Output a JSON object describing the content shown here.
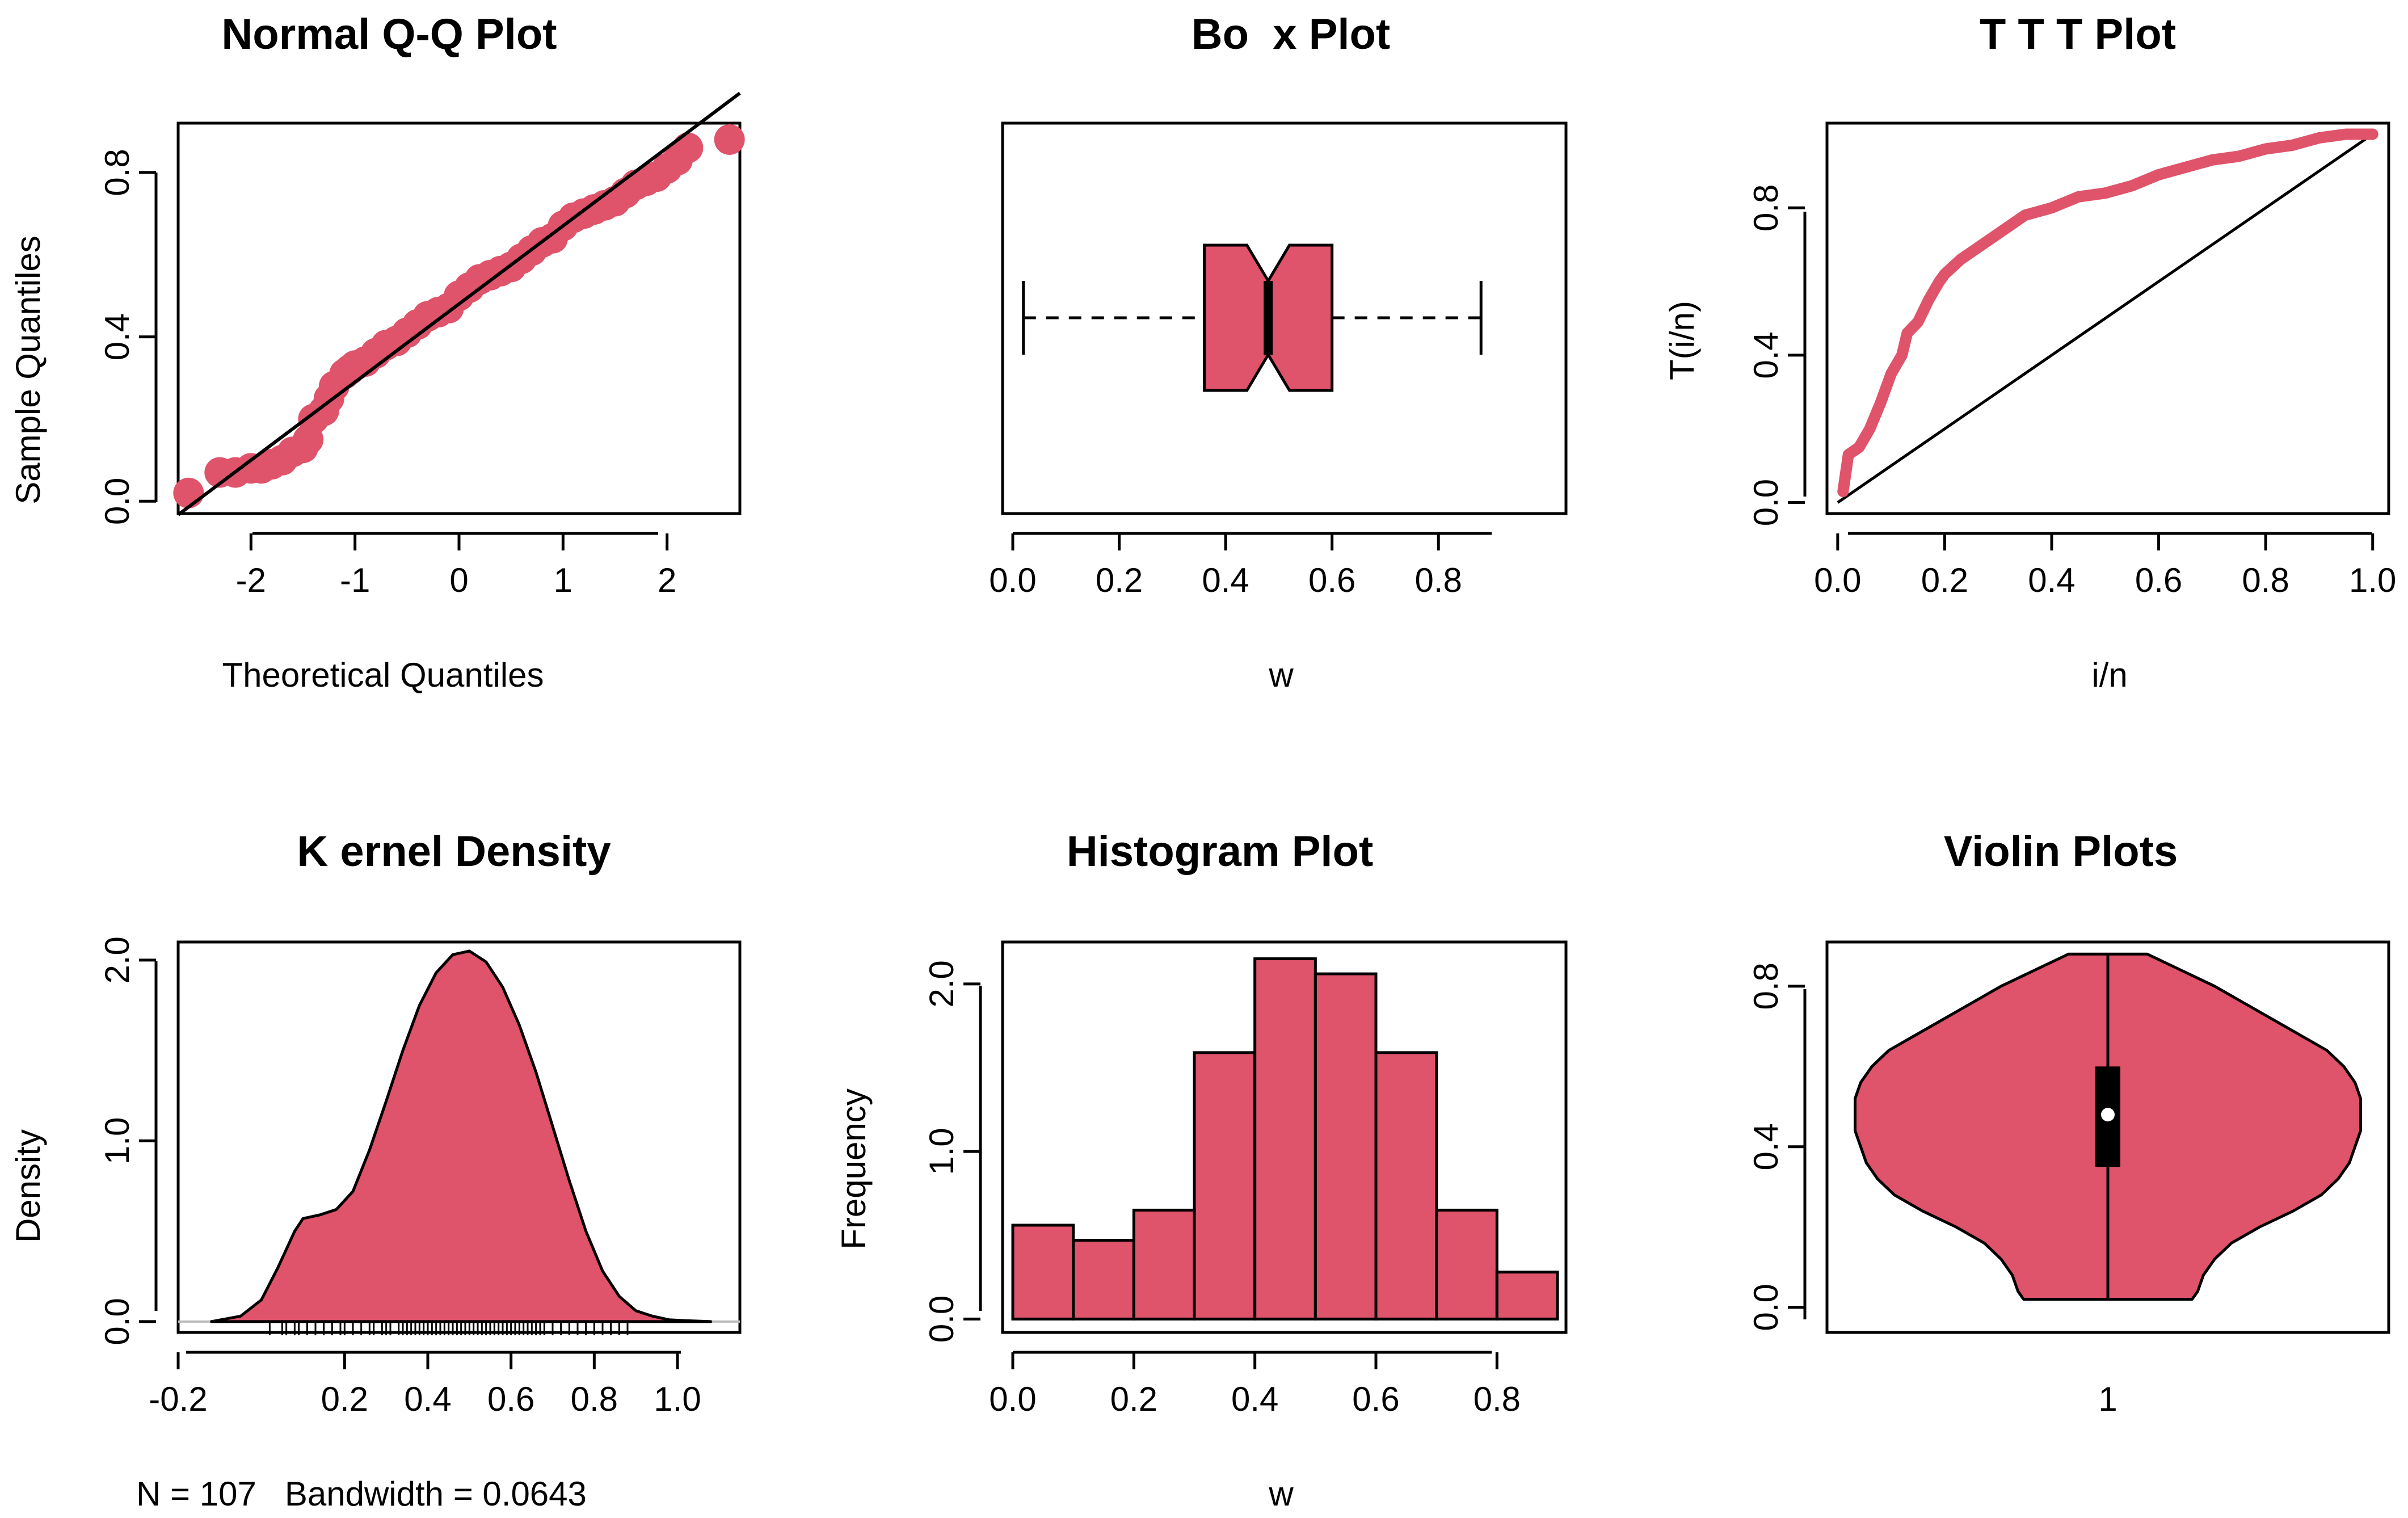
{
  "figure": {
    "accent_color": "#df536b",
    "line_color": "#000000"
  },
  "chart_data": [
    {
      "id": "qq",
      "type": "scatter",
      "title": "Normal Q-Q Plot",
      "xlabel": "Theoretical Quantiles",
      "ylabel": "Sample Quantiles",
      "xlim": [
        -2.7,
        2.7
      ],
      "ylim": [
        -0.03,
        0.92
      ],
      "xticks": [
        -2,
        -1,
        0,
        1,
        2
      ],
      "xtick_labels": [
        "-2",
        "-1",
        "0",
        "1",
        "2"
      ],
      "yticks": [
        0.0,
        0.4,
        0.8
      ],
      "ytick_labels": [
        "0.0",
        "0.4",
        "0.8"
      ],
      "reference_line": {
        "intercept": 0.48,
        "slope": 0.19
      },
      "x": [
        -2.6,
        -2.3,
        -2.15,
        -2.0,
        -1.9,
        -1.8,
        -1.7,
        -1.6,
        -1.5,
        -1.45,
        -1.4,
        -1.3,
        -1.25,
        -1.2,
        -1.1,
        -1.05,
        -1.0,
        -0.9,
        -0.8,
        -0.7,
        -0.6,
        -0.5,
        -0.4,
        -0.3,
        -0.2,
        -0.1,
        0.0,
        0.1,
        0.2,
        0.3,
        0.4,
        0.5,
        0.6,
        0.7,
        0.8,
        0.9,
        1.0,
        1.1,
        1.2,
        1.3,
        1.4,
        1.5,
        1.6,
        1.7,
        1.8,
        1.9,
        2.0,
        2.1,
        2.2,
        2.6
      ],
      "y": [
        0.02,
        0.07,
        0.07,
        0.08,
        0.08,
        0.09,
        0.1,
        0.12,
        0.13,
        0.15,
        0.2,
        0.22,
        0.25,
        0.28,
        0.31,
        0.32,
        0.33,
        0.34,
        0.36,
        0.38,
        0.39,
        0.41,
        0.43,
        0.45,
        0.46,
        0.47,
        0.5,
        0.52,
        0.54,
        0.55,
        0.56,
        0.57,
        0.59,
        0.61,
        0.63,
        0.64,
        0.67,
        0.69,
        0.7,
        0.71,
        0.72,
        0.73,
        0.75,
        0.77,
        0.78,
        0.79,
        0.81,
        0.83,
        0.86,
        0.88
      ]
    },
    {
      "id": "box",
      "type": "box",
      "title": "Bo  x Plot",
      "xlabel": "w",
      "xlim": [
        0.0,
        0.9
      ],
      "xticks": [
        0.0,
        0.2,
        0.4,
        0.6,
        0.8
      ],
      "xtick_labels": [
        "0.0",
        "0.2",
        "0.4",
        "0.6",
        "0.8"
      ],
      "stats": {
        "min": 0.02,
        "q1": 0.36,
        "median": 0.48,
        "q3": 0.6,
        "max": 0.88,
        "notch_low": 0.44,
        "notch_high": 0.52
      }
    },
    {
      "id": "ttt",
      "type": "line",
      "title": "T T T Plot",
      "xlabel": "i/n",
      "ylabel": "T(i/n)",
      "xlim": [
        -0.02,
        1.03
      ],
      "ylim": [
        -0.03,
        1.03
      ],
      "xticks": [
        0.0,
        0.2,
        0.4,
        0.6,
        0.8,
        1.0
      ],
      "xtick_labels": [
        "0.0",
        "0.2",
        "0.4",
        "0.6",
        "0.8",
        "1.0"
      ],
      "yticks": [
        0.0,
        0.4,
        0.8
      ],
      "ytick_labels": [
        "0.0",
        "0.4",
        "0.8"
      ],
      "reference_line": {
        "from": [
          0,
          0
        ],
        "to": [
          1,
          1
        ]
      },
      "x": [
        0.01,
        0.02,
        0.04,
        0.06,
        0.08,
        0.1,
        0.12,
        0.13,
        0.15,
        0.17,
        0.19,
        0.2,
        0.23,
        0.26,
        0.3,
        0.35,
        0.4,
        0.45,
        0.5,
        0.55,
        0.6,
        0.65,
        0.7,
        0.75,
        0.8,
        0.85,
        0.9,
        0.95,
        1.0
      ],
      "y": [
        0.03,
        0.13,
        0.15,
        0.2,
        0.27,
        0.35,
        0.4,
        0.46,
        0.49,
        0.55,
        0.6,
        0.62,
        0.66,
        0.69,
        0.73,
        0.78,
        0.8,
        0.83,
        0.84,
        0.86,
        0.89,
        0.91,
        0.93,
        0.94,
        0.96,
        0.97,
        0.99,
        1.0,
        1.0
      ]
    },
    {
      "id": "kde",
      "type": "area",
      "title": "K ernel Density",
      "ylabel": "Density",
      "subtitle": "N = 107   Bandwidth = 0.0643",
      "xlim": [
        -0.2,
        1.15
      ],
      "ylim": [
        -0.06,
        2.1
      ],
      "xticks": [
        -0.2,
        0.2,
        0.4,
        0.6,
        0.8,
        1.0
      ],
      "xtick_labels": [
        "-0.2",
        "0.2",
        "0.4",
        "0.6",
        "0.8",
        "1.0"
      ],
      "yticks": [
        0.0,
        1.0,
        2.0
      ],
      "ytick_labels": [
        "0.0",
        "1.0",
        "2.0"
      ],
      "x": [
        -0.12,
        -0.05,
        0.0,
        0.04,
        0.08,
        0.1,
        0.14,
        0.18,
        0.22,
        0.26,
        0.3,
        0.34,
        0.38,
        0.42,
        0.46,
        0.5,
        0.54,
        0.58,
        0.62,
        0.66,
        0.7,
        0.74,
        0.78,
        0.82,
        0.86,
        0.9,
        0.94,
        0.98,
        1.02,
        1.08
      ],
      "y": [
        0.0,
        0.03,
        0.12,
        0.3,
        0.5,
        0.57,
        0.59,
        0.62,
        0.72,
        0.95,
        1.22,
        1.5,
        1.75,
        1.93,
        2.03,
        2.05,
        1.99,
        1.85,
        1.64,
        1.38,
        1.08,
        0.78,
        0.5,
        0.28,
        0.14,
        0.06,
        0.03,
        0.01,
        0.005,
        0.0
      ],
      "rug": [
        0.02,
        0.05,
        0.06,
        0.08,
        0.09,
        0.11,
        0.13,
        0.15,
        0.17,
        0.19,
        0.2,
        0.22,
        0.24,
        0.26,
        0.27,
        0.29,
        0.3,
        0.31,
        0.33,
        0.34,
        0.35,
        0.36,
        0.37,
        0.38,
        0.39,
        0.4,
        0.41,
        0.42,
        0.43,
        0.44,
        0.45,
        0.46,
        0.47,
        0.48,
        0.49,
        0.5,
        0.51,
        0.52,
        0.53,
        0.54,
        0.55,
        0.56,
        0.57,
        0.58,
        0.59,
        0.6,
        0.61,
        0.62,
        0.63,
        0.64,
        0.65,
        0.66,
        0.67,
        0.68,
        0.7,
        0.72,
        0.74,
        0.76,
        0.78,
        0.8,
        0.82,
        0.84,
        0.86,
        0.88
      ]
    },
    {
      "id": "hist",
      "type": "bar",
      "title": "Histogram Plot",
      "xlabel": "w",
      "ylabel": "Frequency",
      "xlim": [
        0.0,
        0.9
      ],
      "ylim": [
        -0.08,
        2.25
      ],
      "xticks": [
        0.0,
        0.2,
        0.4,
        0.6,
        0.8
      ],
      "xtick_labels": [
        "0.0",
        "0.2",
        "0.4",
        "0.6",
        "0.8"
      ],
      "yticks": [
        0.0,
        1.0,
        2.0
      ],
      "ytick_labels": [
        "0.0",
        "1.0",
        "2.0"
      ],
      "bin_edges": [
        0.0,
        0.1,
        0.2,
        0.3,
        0.4,
        0.5,
        0.6,
        0.7,
        0.8,
        0.9
      ],
      "values": [
        0.56,
        0.47,
        0.65,
        1.59,
        2.15,
        2.06,
        1.59,
        0.65,
        0.28
      ]
    },
    {
      "id": "violin",
      "type": "violin",
      "title": "Violin Plots",
      "xlim": [
        0.5,
        1.5
      ],
      "ylim": [
        -0.03,
        0.91
      ],
      "xticks": [
        1
      ],
      "xtick_labels": [
        "1"
      ],
      "yticks": [
        0.0,
        0.4,
        0.8
      ],
      "ytick_labels": [
        "0.0",
        "0.4",
        "0.8"
      ],
      "stats": {
        "min": 0.02,
        "q1": 0.35,
        "median": 0.48,
        "q3": 0.6,
        "max": 0.88
      },
      "profile_y": [
        0.02,
        0.04,
        0.08,
        0.12,
        0.16,
        0.2,
        0.24,
        0.28,
        0.32,
        0.36,
        0.4,
        0.44,
        0.48,
        0.52,
        0.56,
        0.6,
        0.64,
        0.68,
        0.72,
        0.76,
        0.8,
        0.84,
        0.88
      ],
      "profile_halfwidth": [
        0.15,
        0.16,
        0.17,
        0.19,
        0.22,
        0.27,
        0.33,
        0.38,
        0.41,
        0.43,
        0.44,
        0.45,
        0.45,
        0.45,
        0.44,
        0.42,
        0.39,
        0.34,
        0.29,
        0.24,
        0.19,
        0.13,
        0.07
      ]
    }
  ]
}
